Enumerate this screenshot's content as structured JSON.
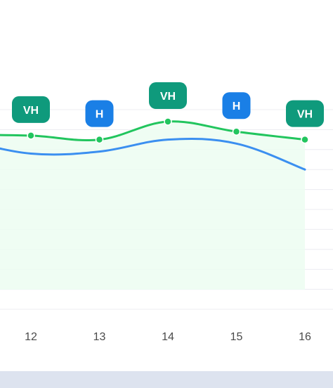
{
  "chart_data": {
    "type": "line",
    "x": [
      12,
      13,
      14,
      15,
      16
    ],
    "categories": [
      "12",
      "13",
      "14",
      "15",
      "16"
    ],
    "series": [
      {
        "name": "",
        "color": "#22c55e",
        "values": [
          11.35,
          11.25,
          11.7,
          11.45,
          11.25
        ],
        "markers": true,
        "area_fill": "#ecfdf1"
      },
      {
        "name": "",
        "color": "#3b8ff0",
        "values": [
          10.9,
          10.95,
          11.25,
          11.15,
          10.5
        ],
        "markers": false
      }
    ],
    "badges": [
      {
        "x": 12,
        "label": "VH",
        "color": "#0f9a7c"
      },
      {
        "x": 13,
        "label": "H",
        "color": "#1a7fe6"
      },
      {
        "x": 14,
        "label": "VH",
        "color": "#0f9a7c"
      },
      {
        "x": 15,
        "label": "H",
        "color": "#1a7fe6"
      },
      {
        "x": 16,
        "label": "VH",
        "color": "#0f9a7c"
      }
    ],
    "ylim": [
      7,
      12
    ],
    "grid": true,
    "title": "",
    "xlabel": "",
    "ylabel": ""
  }
}
